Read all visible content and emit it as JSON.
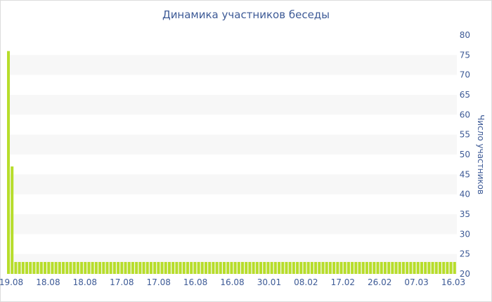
{
  "chart_data": {
    "type": "bar",
    "title": "Динамика участников беседы",
    "ylabel": "Число участников",
    "xlabel": "",
    "ylim": [
      20,
      80
    ],
    "yticks": [
      20,
      25,
      30,
      35,
      40,
      45,
      50,
      55,
      60,
      65,
      70,
      75,
      80
    ],
    "x_tick_labels": [
      "19.08",
      "18.08",
      "18.08",
      "17.08",
      "17.08",
      "16.08",
      "16.08",
      "30.01",
      "08.02",
      "17.02",
      "26.02",
      "07.03",
      "16.03"
    ],
    "values": [
      76,
      47,
      23,
      23,
      23,
      23,
      23,
      23,
      23,
      23,
      23,
      23,
      23,
      23,
      23,
      23,
      23,
      23,
      23,
      23,
      23,
      23,
      23,
      23,
      23,
      23,
      23,
      23,
      23,
      23,
      23,
      23,
      23,
      23,
      23,
      23,
      23,
      23,
      23,
      23,
      23,
      23,
      23,
      23,
      23,
      23,
      23,
      23,
      23,
      23,
      23,
      23,
      23,
      23,
      23,
      23,
      23,
      23,
      23,
      23,
      23,
      23,
      23,
      23,
      23,
      23,
      23,
      23,
      23,
      23,
      23,
      23,
      23,
      23,
      23,
      23,
      23,
      23,
      23,
      23,
      23,
      23,
      23,
      23,
      23,
      23,
      23,
      23,
      23,
      23,
      23,
      23,
      23,
      23,
      23,
      23,
      23,
      23,
      23,
      23,
      23,
      23,
      23,
      23,
      23,
      23,
      23,
      23,
      23,
      23,
      23,
      23,
      23,
      23,
      23,
      23,
      23,
      23,
      23,
      23,
      23,
      23,
      23
    ],
    "grid": "horizontal-bands",
    "bar_color": "#b7dd2b",
    "band_color": "#f7f7f7",
    "text_color": "#3d5a96"
  }
}
